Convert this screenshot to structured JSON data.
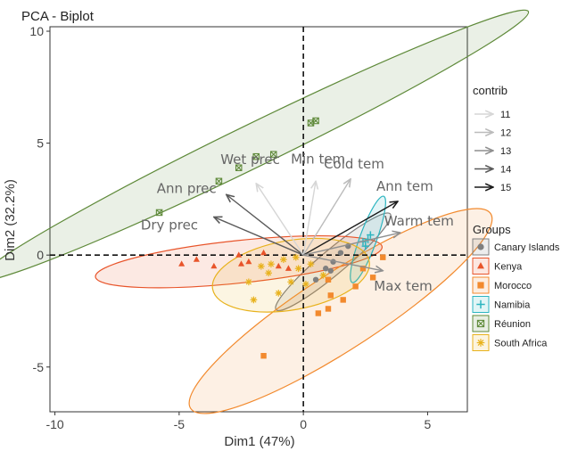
{
  "chart_data": {
    "type": "scatter",
    "title": "PCA - Biplot",
    "xlabel": "Dim1 (47%)",
    "ylabel": "Dim2 (32.2%)",
    "xlim": [
      -10.2,
      6.6
    ],
    "ylim": [
      -7.0,
      10.2
    ],
    "xticks": [
      -10,
      -5,
      0,
      5
    ],
    "yticks": [
      -5,
      0,
      5,
      10
    ],
    "grid": true,
    "legend_position": "right",
    "contrib_legend": {
      "title": "contrib",
      "entries": [
        {
          "label": "11",
          "color": "#d6d6d6"
        },
        {
          "label": "12",
          "color": "#bbbbbb"
        },
        {
          "label": "13",
          "color": "#8f8f8f"
        },
        {
          "label": "14",
          "color": "#5a5a5a"
        },
        {
          "label": "15",
          "color": "#1a1a1a"
        }
      ]
    },
    "variables": [
      {
        "name": "Ann prec",
        "x": -3.1,
        "y": 2.7,
        "contrib": 14.3
      },
      {
        "name": "Dry prec",
        "x": -3.6,
        "y": 1.7,
        "contrib": 14.0
      },
      {
        "name": "Wet prec",
        "x": -1.9,
        "y": 3.2,
        "contrib": 11.2
      },
      {
        "name": "Min tem",
        "x": 0.5,
        "y": 3.3,
        "contrib": 11.0
      },
      {
        "name": "Cold tem",
        "x": 1.9,
        "y": 3.4,
        "contrib": 12.0
      },
      {
        "name": "Ann tem",
        "x": 3.8,
        "y": 2.4,
        "contrib": 15.0
      },
      {
        "name": "Warm tem",
        "x": 3.9,
        "y": 1.0,
        "contrib": 13.0
      },
      {
        "name": "Max tem",
        "x": 3.2,
        "y": -0.7,
        "contrib": 12.5
      }
    ],
    "groups": [
      {
        "name": "Canary Islands",
        "color": "#7f7f7f",
        "shape": "circle",
        "ellipse": {
          "cx": 1.2,
          "cy": -0.3,
          "rx": 3.0,
          "ry": 0.55,
          "angle": 40
        },
        "points": [
          [
            0.9,
            -0.6
          ],
          [
            1.2,
            -0.3
          ],
          [
            1.5,
            0.1
          ],
          [
            0.5,
            -1.1
          ],
          [
            1.8,
            0.4
          ],
          [
            1.1,
            -0.7
          ]
        ]
      },
      {
        "name": "Kenya",
        "color": "#e8542a",
        "shape": "triangle",
        "ellipse": {
          "cx": -2.6,
          "cy": -0.3,
          "rx": 5.8,
          "ry": 0.95,
          "angle": 6
        },
        "points": [
          [
            -4.9,
            -0.4
          ],
          [
            -4.3,
            -0.2
          ],
          [
            -3.6,
            -0.5
          ],
          [
            -2.6,
            0.0
          ],
          [
            -2.5,
            -0.4
          ],
          [
            -2.2,
            -0.3
          ],
          [
            -1.6,
            0.1
          ],
          [
            -1.0,
            -0.5
          ],
          [
            -0.6,
            -0.6
          ]
        ]
      },
      {
        "name": "Morocco",
        "color": "#f28a2e",
        "shape": "square",
        "ellipse": {
          "cx": 1.5,
          "cy": -2.5,
          "rx": 7.2,
          "ry": 1.7,
          "angle": 33
        },
        "points": [
          [
            -1.6,
            -4.5
          ],
          [
            0.6,
            -2.6
          ],
          [
            1.0,
            -2.4
          ],
          [
            1.1,
            -1.8
          ],
          [
            1.0,
            -1.1
          ],
          [
            1.6,
            -2.0
          ],
          [
            2.1,
            -1.4
          ],
          [
            2.4,
            -0.6
          ],
          [
            3.2,
            -0.1
          ],
          [
            2.8,
            -1.0
          ]
        ]
      },
      {
        "name": "Namibia",
        "color": "#2cb5c0",
        "shape": "plus",
        "ellipse": {
          "cx": 2.6,
          "cy": 0.7,
          "rx": 1.85,
          "ry": 0.38,
          "angle": 70
        },
        "points": [
          [
            2.4,
            0.6
          ],
          [
            2.6,
            0.7
          ],
          [
            2.5,
            0.4
          ],
          [
            2.7,
            0.9
          ]
        ]
      },
      {
        "name": "Réunion",
        "color": "#5f8a3a",
        "shape": "boxcross",
        "ellipse": {
          "cx": -2.0,
          "cy": 4.9,
          "rx": 12.3,
          "ry": 0.95,
          "angle": 26
        },
        "points": [
          [
            -5.8,
            1.9
          ],
          [
            -3.4,
            3.3
          ],
          [
            -2.6,
            3.9
          ],
          [
            -1.9,
            4.4
          ],
          [
            -1.2,
            4.5
          ],
          [
            0.3,
            5.9
          ],
          [
            0.5,
            6.0
          ]
        ]
      },
      {
        "name": "South Africa",
        "color": "#e8b21c",
        "shape": "star",
        "ellipse": {
          "cx": -0.5,
          "cy": -0.9,
          "rx": 3.2,
          "ry": 1.55,
          "angle": 10
        },
        "points": [
          [
            -2.2,
            -1.2
          ],
          [
            -1.7,
            -0.5
          ],
          [
            -1.4,
            -0.8
          ],
          [
            -0.8,
            -0.2
          ],
          [
            -0.5,
            -1.2
          ],
          [
            -0.2,
            -0.6
          ],
          [
            0.1,
            -1.3
          ],
          [
            0.3,
            -0.4
          ],
          [
            -1.0,
            -1.7
          ],
          [
            -2.0,
            -2.0
          ],
          [
            0.8,
            -0.9
          ],
          [
            -0.3,
            -0.1
          ],
          [
            -1.3,
            -0.4
          ]
        ]
      }
    ]
  }
}
